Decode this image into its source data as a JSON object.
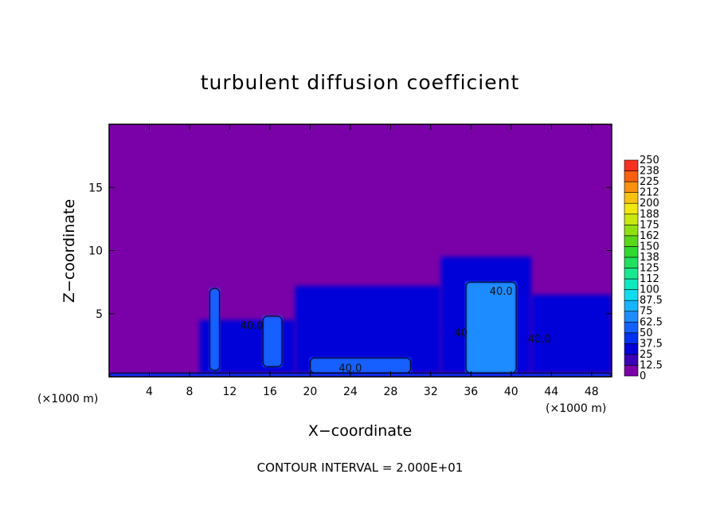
{
  "chart_data": {
    "type": "heatmap",
    "title": "turbulent diffusion coefficient",
    "xlabel": "X−coordinate",
    "ylabel": "Z−coordinate",
    "x_unit_left": "(×1000 m)",
    "x_unit_right": "(×1000 m)",
    "xlim": [
      0,
      50
    ],
    "ylim": [
      0,
      20
    ],
    "x_ticks": [
      4,
      8,
      12,
      16,
      20,
      24,
      28,
      32,
      36,
      40,
      44,
      48
    ],
    "y_ticks": [
      5,
      10,
      15
    ],
    "contour_note": "CONTOUR INTERVAL = 2.000E+01",
    "contour_labels": [
      {
        "text": "40.0",
        "x": 14.2,
        "z": 3.8
      },
      {
        "text": "40.0",
        "x": 24.0,
        "z": 0.4
      },
      {
        "text": "40",
        "x": 35.0,
        "z": 3.2
      },
      {
        "text": "40.0",
        "x": 39.0,
        "z": 6.5
      },
      {
        "text": "40.0",
        "x": 42.8,
        "z": 2.7
      }
    ],
    "colorbar": {
      "levels": [
        "0",
        "12.5",
        "25",
        "37.5",
        "50",
        "62.5",
        "75",
        "87.5",
        "100",
        "112",
        "125",
        "138",
        "150",
        "162",
        "175",
        "188",
        "200",
        "212",
        "225",
        "238",
        "250"
      ],
      "colors": [
        "#7a00a8",
        "#3a00b8",
        "#0000d8",
        "#0030f0",
        "#1460ff",
        "#1c8cff",
        "#18b4ff",
        "#10dcf0",
        "#10e8c0",
        "#18e890",
        "#20e060",
        "#30d830",
        "#58d818",
        "#90e010",
        "#c8e810",
        "#f0e810",
        "#f8c010",
        "#f89010",
        "#f86010",
        "#f83020",
        "#f87878"
      ]
    },
    "regions": [
      {
        "x0": 0,
        "x1": 50,
        "z0": 0,
        "z1": 20,
        "value": 0
      },
      {
        "x0": 0,
        "x1": 9,
        "z0": 0.3,
        "z1": 5.5,
        "value": 10
      },
      {
        "x0": 9,
        "x1": 18.5,
        "z0": 0.3,
        "z1": 4.5,
        "value": 30
      },
      {
        "x0": 18.5,
        "x1": 33,
        "z0": 0.3,
        "z1": 7.2,
        "value": 30
      },
      {
        "x0": 33,
        "x1": 42,
        "z0": 0.3,
        "z1": 9.5,
        "value": 30
      },
      {
        "x0": 42,
        "x1": 50,
        "z0": 0.3,
        "z1": 6.5,
        "value": 25
      },
      {
        "x0": 10,
        "x1": 11,
        "z0": 0.5,
        "z1": 7,
        "value": 55
      },
      {
        "x0": 15.3,
        "x1": 17.2,
        "z0": 0.8,
        "z1": 4.8,
        "value": 60
      },
      {
        "x0": 35.5,
        "x1": 40.5,
        "z0": 0.3,
        "z1": 7.5,
        "value": 65
      },
      {
        "x0": 20,
        "x1": 30,
        "z0": 0.3,
        "z1": 1.5,
        "value": 50
      },
      {
        "x0": 0,
        "x1": 50,
        "z0": 0,
        "z1": 0.3,
        "value": 45
      }
    ]
  }
}
